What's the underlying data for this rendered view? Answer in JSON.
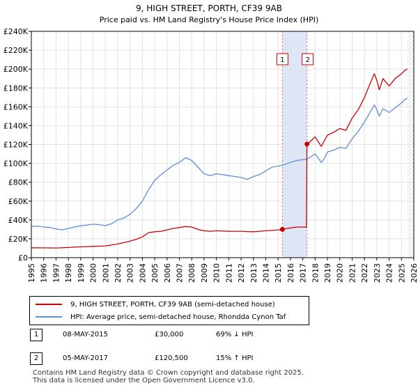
{
  "chart_data": {
    "type": "line",
    "title": "9, HIGH STREET, PORTH, CF39 9AB",
    "subtitle": "Price paid vs. HM Land Registry's House Price Index (HPI)",
    "xlim": [
      1995,
      2026
    ],
    "ylim": [
      0,
      240000
    ],
    "x_ticks": [
      "1995",
      "1996",
      "1997",
      "1998",
      "1999",
      "2000",
      "2001",
      "2002",
      "2003",
      "2004",
      "2005",
      "2006",
      "2007",
      "2008",
      "2009",
      "2010",
      "2011",
      "2012",
      "2013",
      "2014",
      "2015",
      "2016",
      "2017",
      "2018",
      "2019",
      "2020",
      "2021",
      "2022",
      "2023",
      "2024",
      "2025",
      "2026"
    ],
    "y_ticks": [
      {
        "value": 0,
        "label": "£0"
      },
      {
        "value": 20000,
        "label": "£20K"
      },
      {
        "value": 40000,
        "label": "£40K"
      },
      {
        "value": 60000,
        "label": "£60K"
      },
      {
        "value": 80000,
        "label": "£80K"
      },
      {
        "value": 100000,
        "label": "£100K"
      },
      {
        "value": 120000,
        "label": "£120K"
      },
      {
        "value": 140000,
        "label": "£140K"
      },
      {
        "value": 160000,
        "label": "£160K"
      },
      {
        "value": 180000,
        "label": "£180K"
      },
      {
        "value": 200000,
        "label": "£200K"
      },
      {
        "value": 220000,
        "label": "£220K"
      },
      {
        "value": 240000,
        "label": "£240K"
      }
    ],
    "grid": true,
    "shaded_region": {
      "from": 2015.35,
      "to": 2017.34
    },
    "future_hatch_from": 2025.5,
    "series": [
      {
        "name": "9, HIGH STREET, PORTH, CF39 9AB (semi-detached house)",
        "color": "#cc0000",
        "points": [
          [
            1995.0,
            10500
          ],
          [
            1996.0,
            10400
          ],
          [
            1997.0,
            10300
          ],
          [
            1998.0,
            10800
          ],
          [
            1999.0,
            11500
          ],
          [
            2000.0,
            12000
          ],
          [
            2001.0,
            12500
          ],
          [
            2002.0,
            14500
          ],
          [
            2003.0,
            17500
          ],
          [
            2003.5,
            19500
          ],
          [
            2004.0,
            22000
          ],
          [
            2004.5,
            26500
          ],
          [
            2005.0,
            27500
          ],
          [
            2005.5,
            28000
          ],
          [
            2006.0,
            29500
          ],
          [
            2006.5,
            31000
          ],
          [
            2007.0,
            32000
          ],
          [
            2007.5,
            33000
          ],
          [
            2008.0,
            32500
          ],
          [
            2008.5,
            30000
          ],
          [
            2009.0,
            28500
          ],
          [
            2009.5,
            28000
          ],
          [
            2010.0,
            28500
          ],
          [
            2011.0,
            28000
          ],
          [
            2012.0,
            28000
          ],
          [
            2013.0,
            27500
          ],
          [
            2014.0,
            28500
          ],
          [
            2015.0,
            29500
          ],
          [
            2015.35,
            30000
          ],
          [
            2015.7,
            31000
          ],
          [
            2016.0,
            31500
          ],
          [
            2016.5,
            32500
          ],
          [
            2017.0,
            32500
          ],
          [
            2017.3,
            32200
          ],
          [
            2017.34,
            120500
          ],
          [
            2017.6,
            123000
          ],
          [
            2018.0,
            128000
          ],
          [
            2018.5,
            118000
          ],
          [
            2018.75,
            124000
          ],
          [
            2019.0,
            130000
          ],
          [
            2019.5,
            133000
          ],
          [
            2020.0,
            137000
          ],
          [
            2020.5,
            135000
          ],
          [
            2021.0,
            148000
          ],
          [
            2021.5,
            157000
          ],
          [
            2022.0,
            170000
          ],
          [
            2022.5,
            186000
          ],
          [
            2022.8,
            195000
          ],
          [
            2023.0,
            188000
          ],
          [
            2023.2,
            178000
          ],
          [
            2023.5,
            190000
          ],
          [
            2024.0,
            182000
          ],
          [
            2024.5,
            190000
          ],
          [
            2025.0,
            195000
          ],
          [
            2025.3,
            199000
          ],
          [
            2025.5,
            200000
          ]
        ]
      },
      {
        "name": "HPI: Average price, semi-detached house, Rhondda Cynon Taf",
        "color": "#5b8fd6",
        "points": [
          [
            1995.0,
            33000
          ],
          [
            1995.5,
            33500
          ],
          [
            1996.0,
            32500
          ],
          [
            1996.5,
            32000
          ],
          [
            1997.0,
            30500
          ],
          [
            1997.5,
            29500
          ],
          [
            1998.0,
            31000
          ],
          [
            1998.5,
            32500
          ],
          [
            1999.0,
            34000
          ],
          [
            1999.5,
            34500
          ],
          [
            2000.0,
            35500
          ],
          [
            2000.5,
            35000
          ],
          [
            2001.0,
            34000
          ],
          [
            2001.5,
            36000
          ],
          [
            2002.0,
            40000
          ],
          [
            2002.5,
            42000
          ],
          [
            2003.0,
            46000
          ],
          [
            2003.5,
            52000
          ],
          [
            2004.0,
            60000
          ],
          [
            2004.5,
            72000
          ],
          [
            2005.0,
            82000
          ],
          [
            2005.5,
            88000
          ],
          [
            2006.0,
            93000
          ],
          [
            2006.5,
            98000
          ],
          [
            2007.0,
            101000
          ],
          [
            2007.5,
            106000
          ],
          [
            2008.0,
            103000
          ],
          [
            2008.5,
            96000
          ],
          [
            2009.0,
            89000
          ],
          [
            2009.5,
            87000
          ],
          [
            2010.0,
            89000
          ],
          [
            2010.5,
            88000
          ],
          [
            2011.0,
            87000
          ],
          [
            2011.5,
            86000
          ],
          [
            2012.0,
            85000
          ],
          [
            2012.5,
            83000
          ],
          [
            2013.0,
            86000
          ],
          [
            2013.5,
            88000
          ],
          [
            2014.0,
            92000
          ],
          [
            2014.5,
            96000
          ],
          [
            2015.0,
            97000
          ],
          [
            2015.35,
            98000
          ],
          [
            2016.0,
            101000
          ],
          [
            2016.5,
            103000
          ],
          [
            2017.0,
            104000
          ],
          [
            2017.34,
            104500
          ],
          [
            2018.0,
            110000
          ],
          [
            2018.5,
            101000
          ],
          [
            2018.75,
            105000
          ],
          [
            2019.0,
            112000
          ],
          [
            2019.5,
            114000
          ],
          [
            2020.0,
            117000
          ],
          [
            2020.5,
            116000
          ],
          [
            2021.0,
            126000
          ],
          [
            2021.5,
            134000
          ],
          [
            2022.0,
            144000
          ],
          [
            2022.5,
            155000
          ],
          [
            2022.8,
            162000
          ],
          [
            2023.0,
            157000
          ],
          [
            2023.2,
            150000
          ],
          [
            2023.5,
            158000
          ],
          [
            2024.0,
            154000
          ],
          [
            2024.5,
            159000
          ],
          [
            2025.0,
            164000
          ],
          [
            2025.3,
            168000
          ],
          [
            2025.5,
            169000
          ]
        ]
      }
    ],
    "sale_markers": [
      {
        "id": "1",
        "x": 2015.35,
        "y": 30000
      },
      {
        "id": "2",
        "x": 2017.34,
        "y": 120500
      }
    ]
  },
  "legend": {
    "property_label": "9, HIGH STREET, PORTH, CF39 9AB (semi-detached house)",
    "hpi_label": "HPI: Average price, semi-detached house, Rhondda Cynon Taf"
  },
  "sales": [
    {
      "num": "1",
      "date": "08-MAY-2015",
      "price": "£30,000",
      "hpi": "69% ↓ HPI"
    },
    {
      "num": "2",
      "date": "05-MAY-2017",
      "price": "£120,500",
      "hpi": "15% ↑ HPI"
    }
  ],
  "footer": {
    "line1": "Contains HM Land Registry data © Crown copyright and database right 2025.",
    "line2": "This data is licensed under the Open Government Licence v3.0."
  },
  "colors": {
    "property": "#cc0000",
    "hpi": "#5b8fd6",
    "shade": "#dde6f7"
  }
}
